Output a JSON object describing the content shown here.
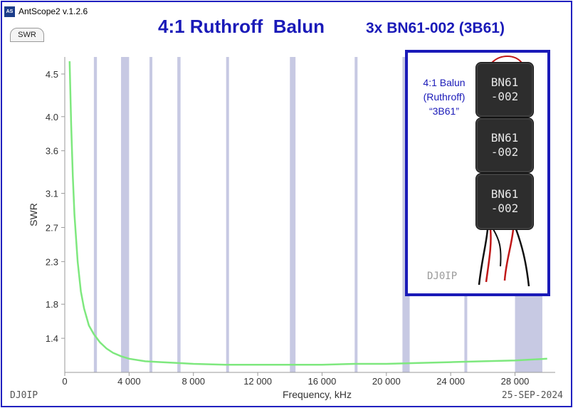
{
  "window": {
    "app_title": "AntScope2 v.1.2.6",
    "icon_text": "AS"
  },
  "tab": {
    "label": "SWR"
  },
  "header": {
    "title": "4:1 Ruthroff  Balun",
    "subtitle": "3x BN61-002 (3B61)"
  },
  "footer": {
    "left": "DJ0IP",
    "right": "25-SEP-2024"
  },
  "photo": {
    "caption_line1": "4:1 Balun",
    "caption_line2": "(Ruthroff)",
    "caption_line3": "“3B61”",
    "core_label": "BN61\n-002",
    "watermark": "DJ0IP"
  },
  "chart_data": {
    "type": "line",
    "xlabel": "Frequency, kHz",
    "ylabel": "SWR",
    "xlim": [
      0,
      30500
    ],
    "ylim": [
      1.0,
      4.7
    ],
    "x_ticks": [
      0,
      4000,
      8000,
      12000,
      16000,
      20000,
      24000,
      28000
    ],
    "x_tick_labels": [
      "0",
      "4 000",
      "8 000",
      "12 000",
      "16 000",
      "20 000",
      "24 000",
      "28 000"
    ],
    "y_ticks": [
      1.4,
      1.8,
      2.3,
      2.7,
      3.1,
      3.6,
      4.0,
      4.5
    ],
    "y_tick_labels": [
      "1.4",
      "1.8",
      "2.3",
      "2.7",
      "3.1",
      "3.6",
      "4.0",
      "4.5"
    ],
    "bands_khz": [
      [
        1810,
        2000
      ],
      [
        3500,
        4000
      ],
      [
        5350,
        5366
      ],
      [
        7000,
        7200
      ],
      [
        10100,
        10150
      ],
      [
        14000,
        14350
      ],
      [
        18068,
        18168
      ],
      [
        21000,
        21450
      ],
      [
        24890,
        24990
      ],
      [
        28000,
        29700
      ]
    ],
    "series": [
      {
        "color": "#7ee87e",
        "x": [
          300,
          400,
          500,
          600,
          800,
          1000,
          1200,
          1500,
          1800,
          2200,
          2600,
          3000,
          3500,
          4000,
          5000,
          6000,
          7000,
          8000,
          10000,
          12000,
          14000,
          16000,
          18000,
          20000,
          22000,
          24000,
          26000,
          28000,
          29000,
          30000
        ],
        "y": [
          4.65,
          3.9,
          3.3,
          2.85,
          2.3,
          1.95,
          1.75,
          1.55,
          1.45,
          1.35,
          1.28,
          1.23,
          1.19,
          1.16,
          1.13,
          1.12,
          1.11,
          1.1,
          1.09,
          1.09,
          1.09,
          1.09,
          1.1,
          1.1,
          1.11,
          1.12,
          1.13,
          1.14,
          1.15,
          1.16
        ]
      }
    ],
    "grid": false
  },
  "colors": {
    "accent": "#1a1ab8",
    "band": "#c7c9e3",
    "curve": "#7ee87e",
    "axis": "#9a9a9a"
  }
}
